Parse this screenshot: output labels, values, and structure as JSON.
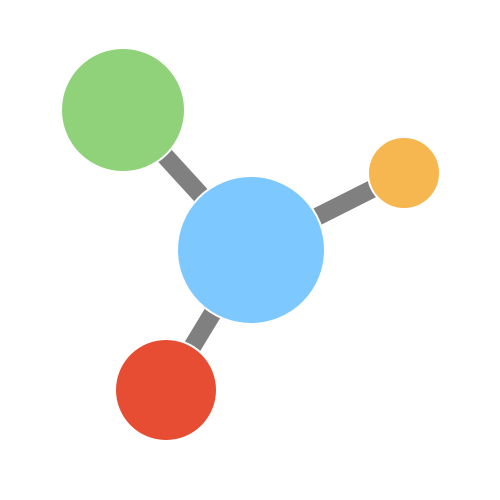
{
  "diagram": {
    "type": "network-molecule-icon",
    "background_color": "#ffffff",
    "link_color": "#808080",
    "nodes": [
      {
        "id": "center",
        "role": "hub",
        "color": "#7DC8FF"
      },
      {
        "id": "green",
        "role": "leaf",
        "color": "#8FD27A"
      },
      {
        "id": "orange",
        "role": "leaf",
        "color": "#F6B650"
      },
      {
        "id": "red",
        "role": "leaf",
        "color": "#E64D32"
      }
    ],
    "links": [
      {
        "from": "center",
        "to": "green"
      },
      {
        "from": "center",
        "to": "orange"
      },
      {
        "from": "center",
        "to": "red"
      }
    ]
  }
}
